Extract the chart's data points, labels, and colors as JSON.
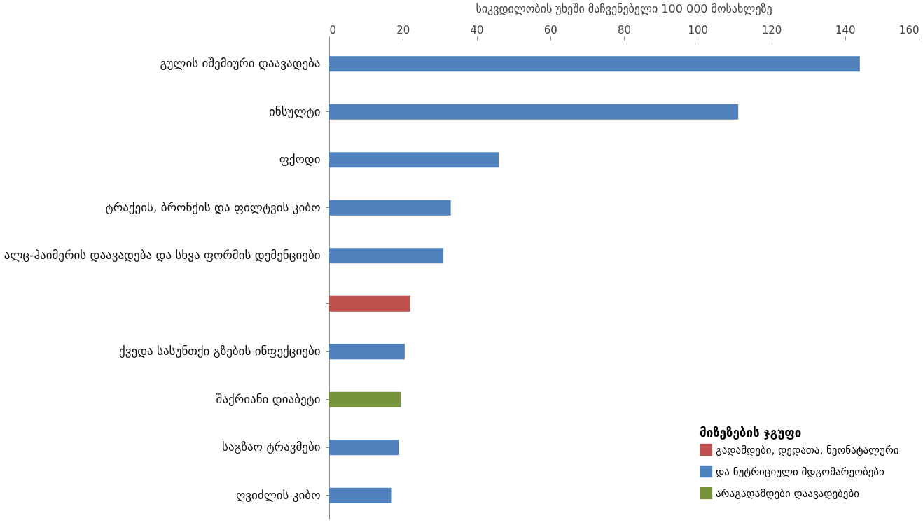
{
  "chart_data": {
    "type": "bar",
    "orientation": "horizontal",
    "title": "სიკვდილობის უხეში მაჩვენებელი 100 000  მოსახლეზე",
    "categories": [
      "გულის იშემიური დაავადება",
      "ინსულტი",
      "ფქოდი",
      "ტრაქეის, ბრონქის და ფილტვის კიბო",
      "ალც-ჰაიმერის დაავადება და სხვა ფორმის დემენციები",
      null,
      "ქვედა სასუნთქი გზების ინფექციები",
      "შაქრიანი დიაბეტი",
      "საგზაო ტრავმები",
      "ღვიძლის კიბო"
    ],
    "series": [
      {
        "name": "გადამდები, დედათა, ნეონატალური",
        "color": "#c0504d",
        "values": [
          null,
          null,
          null,
          null,
          null,
          22,
          null,
          null,
          null,
          null
        ]
      },
      {
        "name": "და  ნუტრიციული მდგომარეობები",
        "color": "#4f81bd",
        "values": [
          144,
          111,
          46,
          33,
          31,
          null,
          20.5,
          null,
          19,
          17
        ]
      },
      {
        "name": "არაგადამდები დაავადებები",
        "color": "#77933c",
        "values": [
          null,
          null,
          null,
          null,
          null,
          null,
          null,
          19.5,
          null,
          null
        ]
      }
    ],
    "xlim": [
      0,
      160
    ],
    "xticks": [
      0,
      20,
      40,
      60,
      80,
      100,
      120,
      140,
      160
    ],
    "legend_title": "მიზეზების ჯგუფი",
    "legend": "bottom right",
    "grid": false
  }
}
